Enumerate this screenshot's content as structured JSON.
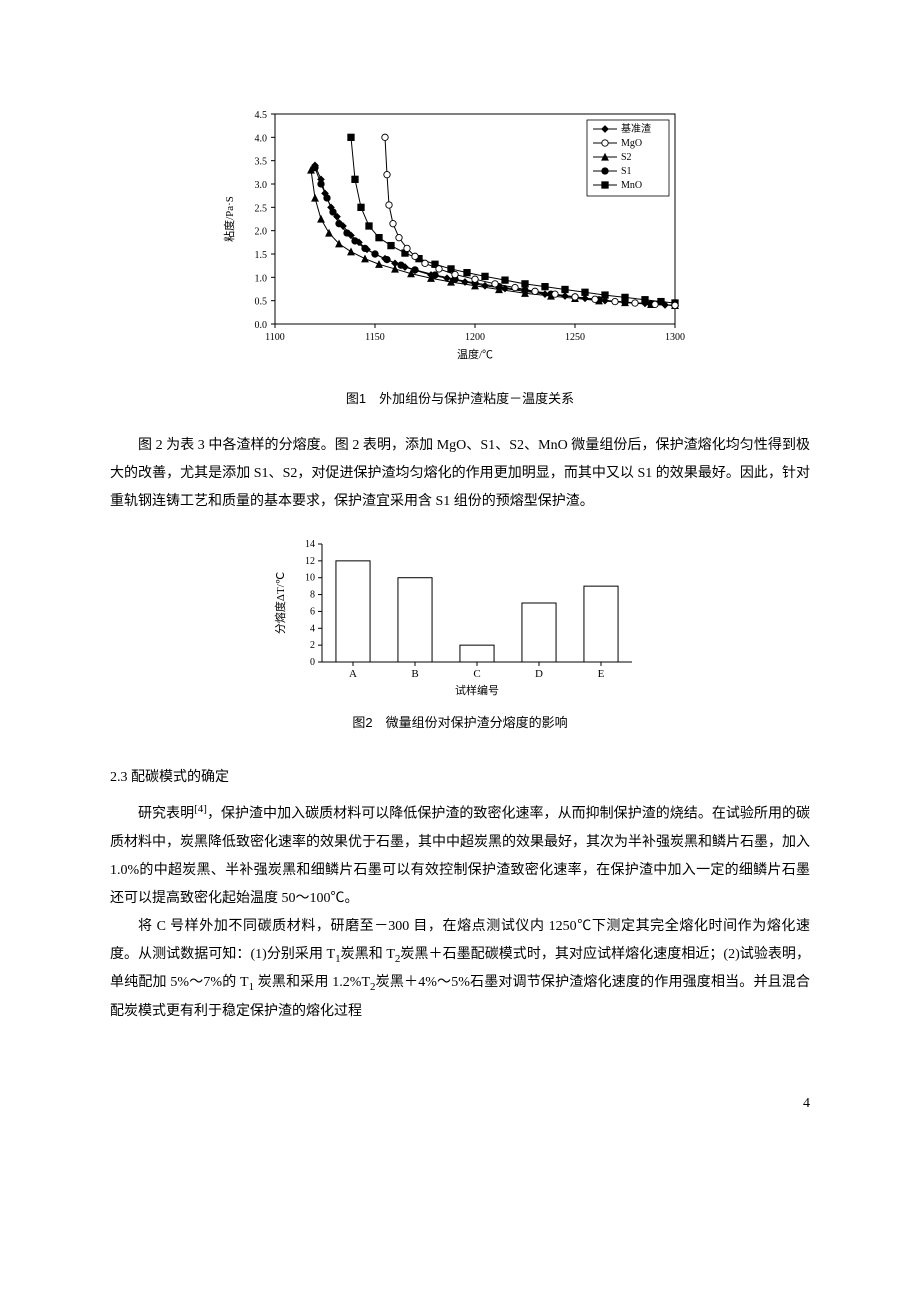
{
  "figure1": {
    "caption": "图1　外加组份与保护渣粘度－温度关系",
    "xlabel": "温度/℃",
    "ylabel": "粘度/Pa·S",
    "xmin": 1100,
    "xmax": 1300,
    "xtick_step": 50,
    "ymin": 0.0,
    "ymax": 4.5,
    "ytick_step": 0.5,
    "label_fontsize": 11,
    "tick_fontsize": 10,
    "bg_color": "#ffffff",
    "axis_color": "#000000",
    "legend": {
      "border_color": "#000000",
      "items": [
        {
          "label": "基准渣",
          "marker": "diamond",
          "fill": true
        },
        {
          "label": "MgO",
          "marker": "circle",
          "fill": false
        },
        {
          "label": "S2",
          "marker": "triangle",
          "fill": true
        },
        {
          "label": "S1",
          "marker": "circle",
          "fill": true
        },
        {
          "label": "MnO",
          "marker": "square",
          "fill": true
        }
      ]
    },
    "series": {
      "ref": {
        "marker": "diamond",
        "fill": true,
        "color": "#000000",
        "points": [
          [
            1120,
            3.4
          ],
          [
            1123,
            3.1
          ],
          [
            1125,
            2.8
          ],
          [
            1128,
            2.5
          ],
          [
            1131,
            2.3
          ],
          [
            1134,
            2.1
          ],
          [
            1138,
            1.9
          ],
          [
            1142,
            1.75
          ],
          [
            1146,
            1.6
          ],
          [
            1150,
            1.5
          ],
          [
            1155,
            1.4
          ],
          [
            1160,
            1.3
          ],
          [
            1165,
            1.22
          ],
          [
            1170,
            1.15
          ],
          [
            1178,
            1.05
          ],
          [
            1186,
            0.98
          ],
          [
            1195,
            0.9
          ],
          [
            1205,
            0.82
          ],
          [
            1215,
            0.76
          ],
          [
            1225,
            0.7
          ],
          [
            1235,
            0.64
          ],
          [
            1245,
            0.6
          ],
          [
            1255,
            0.55
          ],
          [
            1265,
            0.5
          ],
          [
            1275,
            0.47
          ],
          [
            1285,
            0.44
          ],
          [
            1295,
            0.41
          ],
          [
            1300,
            0.4
          ]
        ]
      },
      "MgO": {
        "marker": "circle",
        "fill": false,
        "color": "#000000",
        "points": [
          [
            1155,
            4.0
          ],
          [
            1156,
            3.2
          ],
          [
            1157,
            2.55
          ],
          [
            1159,
            2.15
          ],
          [
            1162,
            1.85
          ],
          [
            1166,
            1.62
          ],
          [
            1170,
            1.45
          ],
          [
            1175,
            1.3
          ],
          [
            1182,
            1.18
          ],
          [
            1190,
            1.06
          ],
          [
            1200,
            0.96
          ],
          [
            1210,
            0.86
          ],
          [
            1220,
            0.78
          ],
          [
            1230,
            0.7
          ],
          [
            1240,
            0.64
          ],
          [
            1250,
            0.58
          ],
          [
            1260,
            0.53
          ],
          [
            1270,
            0.48
          ],
          [
            1280,
            0.45
          ],
          [
            1290,
            0.42
          ],
          [
            1300,
            0.4
          ]
        ]
      },
      "S2": {
        "marker": "triangle",
        "fill": true,
        "color": "#000000",
        "points": [
          [
            1118,
            3.3
          ],
          [
            1120,
            2.7
          ],
          [
            1123,
            2.25
          ],
          [
            1127,
            1.95
          ],
          [
            1132,
            1.72
          ],
          [
            1138,
            1.55
          ],
          [
            1145,
            1.4
          ],
          [
            1152,
            1.28
          ],
          [
            1160,
            1.18
          ],
          [
            1168,
            1.08
          ],
          [
            1178,
            0.98
          ],
          [
            1188,
            0.9
          ],
          [
            1200,
            0.82
          ],
          [
            1212,
            0.74
          ],
          [
            1225,
            0.66
          ],
          [
            1238,
            0.6
          ],
          [
            1250,
            0.55
          ],
          [
            1262,
            0.5
          ],
          [
            1275,
            0.46
          ],
          [
            1288,
            0.42
          ],
          [
            1300,
            0.4
          ]
        ]
      },
      "S1": {
        "marker": "circle",
        "fill": true,
        "color": "#000000",
        "points": [
          [
            1120,
            3.35
          ],
          [
            1123,
            3.0
          ],
          [
            1126,
            2.7
          ],
          [
            1129,
            2.4
          ],
          [
            1132,
            2.15
          ],
          [
            1136,
            1.95
          ],
          [
            1140,
            1.78
          ],
          [
            1145,
            1.62
          ],
          [
            1150,
            1.5
          ],
          [
            1156,
            1.38
          ],
          [
            1163,
            1.26
          ],
          [
            1170,
            1.16
          ],
          [
            1180,
            1.05
          ],
          [
            1190,
            0.96
          ],
          [
            1200,
            0.88
          ],
          [
            1212,
            0.8
          ],
          [
            1225,
            0.72
          ],
          [
            1238,
            0.64
          ],
          [
            1250,
            0.58
          ],
          [
            1262,
            0.52
          ],
          [
            1275,
            0.47
          ],
          [
            1288,
            0.43
          ],
          [
            1300,
            0.4
          ]
        ]
      },
      "MnO": {
        "marker": "square",
        "fill": true,
        "color": "#000000",
        "points": [
          [
            1138,
            4.0
          ],
          [
            1140,
            3.1
          ],
          [
            1143,
            2.5
          ],
          [
            1147,
            2.1
          ],
          [
            1152,
            1.85
          ],
          [
            1158,
            1.68
          ],
          [
            1165,
            1.52
          ],
          [
            1172,
            1.4
          ],
          [
            1180,
            1.28
          ],
          [
            1188,
            1.18
          ],
          [
            1196,
            1.1
          ],
          [
            1205,
            1.02
          ],
          [
            1215,
            0.94
          ],
          [
            1225,
            0.86
          ],
          [
            1235,
            0.8
          ],
          [
            1245,
            0.74
          ],
          [
            1255,
            0.68
          ],
          [
            1265,
            0.62
          ],
          [
            1275,
            0.57
          ],
          [
            1285,
            0.52
          ],
          [
            1293,
            0.48
          ],
          [
            1300,
            0.45
          ]
        ]
      }
    }
  },
  "para1": "图 2 为表 3 中各渣样的分熔度。图 2 表明，添加 MgO、S1、S2、MnO 微量组份后，保护渣熔化均匀性得到极大的改善，尤其是添加 S1、S2，对促进保护渣均匀熔化的作用更加明显，而其中又以 S1 的效果最好。因此，针对重轨钢连铸工艺和质量的基本要求，保护渣宜采用含 S1 组份的预熔型保护渣。",
  "figure2": {
    "caption": "图2　微量组份对保护渣分熔度的影响",
    "xlabel": "试样编号",
    "ylabel": "分熔度ΔT/℃",
    "ymin": 0,
    "ymax": 14,
    "ytick_step": 2,
    "bg_color": "#ffffff",
    "axis_color": "#000000",
    "bar_fill": "#ffffff",
    "bar_stroke": "#000000",
    "bar_width": 0.55,
    "categories": [
      "A",
      "B",
      "C",
      "D",
      "E"
    ],
    "values": [
      12,
      10,
      2,
      7,
      9
    ]
  },
  "section_heading": "2.3 配碳模式的确定",
  "para2_pre": "研究表明",
  "para2_cite": "[4]",
  "para2_post": "，保护渣中加入碳质材料可以降低保护渣的致密化速率，从而抑制保护渣的烧结。在试验所用的碳质材料中，炭黑降低致密化速率的效果优于石墨，其中中超炭黑的效果最好，其次为半补强炭黑和鳞片石墨，加入 1.0%的中超炭黑、半补强炭黑和细鳞片石墨可以有效控制保护渣致密化速率，在保护渣中加入一定的细鳞片石墨还可以提高致密化起始温度 50～100℃。",
  "para3_parts": [
    "将 C 号样外加不同碳质材料，研磨至－300 目，在熔点测试仪内 1250℃下测定其完全熔化时间作为熔化速度。从测试数据可知：(1)分别采用 T",
    "1",
    "炭黑和 T",
    "2",
    "炭黑＋石墨配碳模式时，其对应试样熔化速度相近；(2)试验表明，单纯配加 5%～7%的 T",
    "1",
    " 炭黑和采用 1.2%T",
    "2",
    "炭黑＋4%～5%石墨对调节保护渣熔化速度的作用强度相当。并且混合配炭模式更有利于稳定保护渣的熔化过程"
  ],
  "page_number": "4"
}
